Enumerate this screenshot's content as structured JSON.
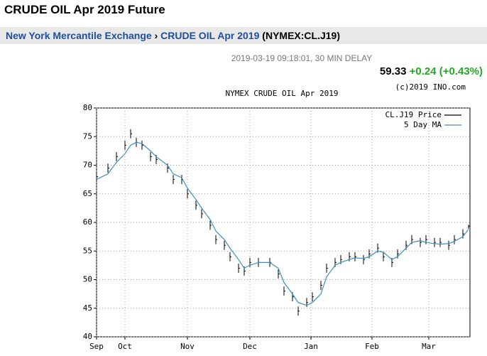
{
  "header": {
    "title": "CRUDE OIL Apr 2019 Future",
    "breadcrumb": [
      "New York Mercantile Exchange",
      "CRUDE OIL Apr 2019"
    ],
    "separator": "›",
    "symbol": "(NYMEX:CL.J19)"
  },
  "quote": {
    "timestamp": "2019-03-19 09:18:01, 30 MIN DELAY",
    "price": "59.33",
    "change": "+0.24 (+0.43%)",
    "copyright": "(c)2019 INO.com"
  },
  "chart_data": {
    "type": "ohlc",
    "title": "NYMEX CRUDE OIL Apr 2019",
    "x": [
      0,
      4,
      7,
      10,
      12,
      14,
      16,
      19,
      21,
      25,
      27,
      30,
      32,
      35,
      37,
      40,
      42,
      45,
      47,
      50,
      52,
      54,
      57,
      61,
      64,
      66,
      69,
      71,
      74,
      76,
      79,
      81,
      84,
      86,
      89,
      91,
      94,
      96,
      99,
      101,
      104,
      106,
      109,
      111,
      114,
      116,
      119,
      121,
      124,
      126,
      129,
      131
    ],
    "series": [
      {
        "name": "CL.J19 Price",
        "color": "#000000",
        "values": [
          68,
          69.5,
          71.5,
          73.5,
          75.5,
          74,
          73.5,
          71.5,
          71,
          69.5,
          67.5,
          67.5,
          65,
          63,
          61.5,
          59.5,
          57,
          56,
          54,
          52,
          51.5,
          53,
          53,
          53,
          51,
          48,
          47,
          44.5,
          46,
          47,
          49,
          52,
          53,
          53.5,
          54,
          54,
          53.5,
          54.5,
          55.5,
          54,
          53,
          54.5,
          56,
          57,
          56.5,
          57,
          56.5,
          56.5,
          56,
          57,
          58,
          59.33
        ],
        "high": [
          68.8,
          70.3,
          72.3,
          74.3,
          76.3,
          74.8,
          74.3,
          72.3,
          71.8,
          70.3,
          68.3,
          68.3,
          65.8,
          63.8,
          62.3,
          60.3,
          57.8,
          56.8,
          54.8,
          52.8,
          52.3,
          53.8,
          53.8,
          53.8,
          51.8,
          48.8,
          47.8,
          45.3,
          46.8,
          47.8,
          49.8,
          52.8,
          53.8,
          54.3,
          54.8,
          54.8,
          54.3,
          55.3,
          56.3,
          54.8,
          53.8,
          55.3,
          56.8,
          57.8,
          57.3,
          57.8,
          57.3,
          57.3,
          56.8,
          57.8,
          58.8,
          59.6
        ],
        "low": [
          67.2,
          68.7,
          70.7,
          72.7,
          74.7,
          73.2,
          72.7,
          70.7,
          70.2,
          68.7,
          66.7,
          66.7,
          64.2,
          62.2,
          60.7,
          58.7,
          56.2,
          55.2,
          53.2,
          51.2,
          50.7,
          52.2,
          52.2,
          52.2,
          50.2,
          47.2,
          46.2,
          43.7,
          45.2,
          46.2,
          48.2,
          51.2,
          52.2,
          52.7,
          53.2,
          53.2,
          52.7,
          53.7,
          54.7,
          53.2,
          52.2,
          53.7,
          55.2,
          56.2,
          55.7,
          56.2,
          55.7,
          55.7,
          55.2,
          56.2,
          57.2,
          58.9
        ]
      },
      {
        "name": "5 Day MA",
        "color": "#3a8fc4",
        "values": [
          67.5,
          68.5,
          70.5,
          72,
          73.5,
          74,
          73.8,
          72.5,
          71.5,
          70,
          68.5,
          67.8,
          66,
          64,
          62.5,
          60.5,
          58.5,
          57,
          55.5,
          53.5,
          52,
          52.5,
          53,
          53,
          52,
          49.5,
          47.5,
          46,
          45.5,
          46,
          47.5,
          50.5,
          52.5,
          53,
          53.5,
          53.8,
          53.7,
          54,
          55,
          54.8,
          53.5,
          54,
          55.5,
          56.5,
          56.8,
          56.5,
          56.3,
          56.2,
          56.3,
          56.7,
          57.5,
          58.8
        ]
      }
    ],
    "xlim": [
      0,
      131.5
    ],
    "xticks": [
      {
        "value": 0,
        "label": "Sep"
      },
      {
        "value": 10,
        "label": "Oct"
      },
      {
        "value": 32,
        "label": "Nov"
      },
      {
        "value": 54,
        "label": "Dec"
      },
      {
        "value": 75.5,
        "label": "Jan"
      },
      {
        "value": 97,
        "label": "Feb"
      },
      {
        "value": 117,
        "label": "Mar"
      }
    ],
    "ylim": [
      40,
      80
    ],
    "yticks": [
      40,
      45,
      50,
      55,
      60,
      65,
      70,
      75,
      80
    ],
    "grid": true,
    "legend": "upper right"
  }
}
